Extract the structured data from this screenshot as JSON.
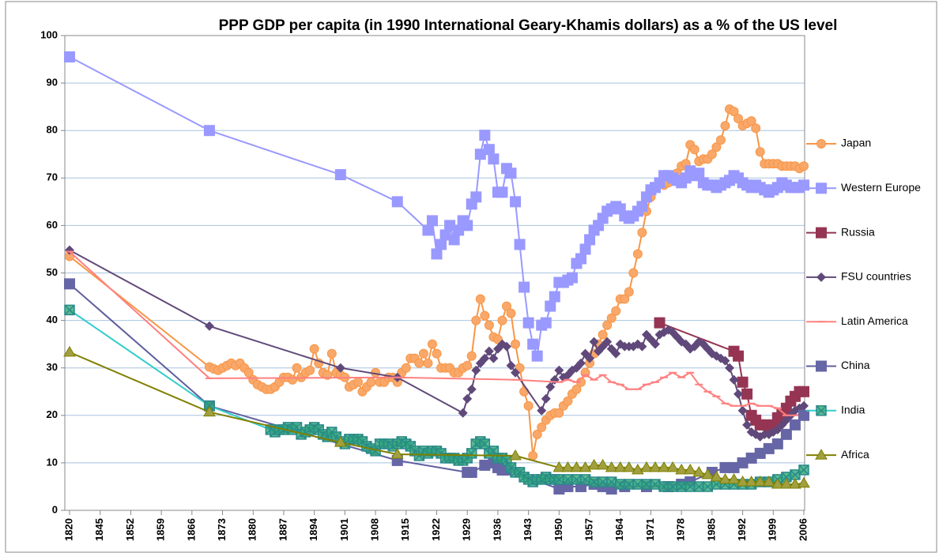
{
  "chart_data": {
    "type": "line",
    "title": "PPP GDP per capita (in 1990 International Geary-Khamis dollars) as a % of the US level",
    "xticks": [
      1820,
      1845,
      1852,
      1859,
      1866,
      1873,
      1880,
      1887,
      1894,
      1901,
      1908,
      1915,
      1922,
      1929,
      1936,
      1943,
      1950,
      1957,
      1964,
      1971,
      1978,
      1985,
      1992,
      1999,
      2006
    ],
    "ylim": [
      0,
      100
    ],
    "yticks": [
      0,
      10,
      20,
      30,
      40,
      50,
      60,
      70,
      80,
      90,
      100
    ],
    "grid": true,
    "legend": "right",
    "series": [
      {
        "name": "Japan",
        "color": "#f79646",
        "marker": "circle",
        "marker_color": "#f9a86a",
        "x": [
          1820,
          1870,
          1871,
          1872,
          1873,
          1874,
          1875,
          1876,
          1877,
          1878,
          1879,
          1880,
          1881,
          1882,
          1883,
          1884,
          1885,
          1886,
          1887,
          1888,
          1889,
          1890,
          1891,
          1892,
          1893,
          1894,
          1895,
          1896,
          1897,
          1898,
          1899,
          1900,
          1901,
          1902,
          1903,
          1904,
          1905,
          1906,
          1907,
          1908,
          1909,
          1910,
          1911,
          1912,
          1913,
          1914,
          1915,
          1916,
          1917,
          1918,
          1919,
          1920,
          1921,
          1922,
          1923,
          1924,
          1925,
          1926,
          1927,
          1928,
          1929,
          1930,
          1931,
          1932,
          1933,
          1934,
          1935,
          1936,
          1937,
          1938,
          1939,
          1940,
          1941,
          1942,
          1943,
          1944,
          1945,
          1946,
          1947,
          1948,
          1949,
          1950,
          1951,
          1952,
          1953,
          1954,
          1955,
          1956,
          1957,
          1958,
          1959,
          1960,
          1961,
          1962,
          1963,
          1964,
          1965,
          1966,
          1967,
          1968,
          1969,
          1970,
          1971,
          1972,
          1973,
          1974,
          1975,
          1976,
          1977,
          1978,
          1979,
          1980,
          1981,
          1982,
          1983,
          1984,
          1985,
          1986,
          1987,
          1988,
          1989,
          1990,
          1991,
          1992,
          1993,
          1994,
          1995,
          1996,
          1997,
          1998,
          1999,
          2000,
          2001,
          2002,
          2003,
          2004,
          2005,
          2006
        ],
        "values": [
          53.5,
          30.2,
          29.8,
          29.5,
          30,
          30.5,
          31,
          30.5,
          31,
          30,
          29,
          27.5,
          26.5,
          26,
          25.5,
          25.5,
          26,
          27,
          28,
          28,
          27.5,
          30,
          28,
          29,
          29.5,
          34,
          31,
          29,
          28.5,
          33,
          29,
          28.5,
          28,
          26,
          26.5,
          27,
          25,
          26,
          27,
          29,
          27,
          27,
          28,
          28,
          27,
          29,
          30,
          32,
          32,
          31,
          33,
          31,
          35,
          33,
          30,
          30,
          30,
          29,
          29,
          30,
          30.5,
          32.5,
          40,
          44.5,
          41,
          39,
          36.5,
          36,
          40,
          43,
          41.5,
          35,
          30,
          25,
          22,
          11.5,
          16,
          17.5,
          19,
          20,
          20.5,
          20.5,
          22,
          23,
          24.5,
          25.5,
          27,
          29,
          31,
          33,
          35,
          37,
          39,
          40.5,
          42,
          44.5,
          44.5,
          46,
          50,
          54,
          58.5,
          63,
          66,
          68,
          69,
          68.5,
          69,
          70,
          71,
          72.5,
          73,
          77,
          76,
          73.5,
          74,
          74,
          75,
          76.5,
          78,
          81,
          84.5,
          84,
          82.5,
          81,
          81.5,
          82,
          80.5,
          75.5,
          73,
          73,
          73,
          73,
          72.5,
          72.5,
          72.5,
          72.5,
          72,
          72.5
        ]
      },
      {
        "name": "Western Europe",
        "color": "#9999ff",
        "marker": "square",
        "marker_color": "#9999ff",
        "x": [
          1820,
          1870,
          1900,
          1913,
          1920,
          1921,
          1922,
          1923,
          1924,
          1925,
          1926,
          1927,
          1928,
          1929,
          1930,
          1931,
          1932,
          1933,
          1934,
          1935,
          1936,
          1937,
          1938,
          1939,
          1940,
          1941,
          1942,
          1943,
          1944,
          1945,
          1946,
          1947,
          1948,
          1949,
          1950,
          1951,
          1952,
          1953,
          1954,
          1955,
          1956,
          1957,
          1958,
          1959,
          1960,
          1961,
          1962,
          1963,
          1964,
          1965,
          1966,
          1967,
          1968,
          1969,
          1970,
          1971,
          1972,
          1973,
          1974,
          1975,
          1976,
          1977,
          1978,
          1979,
          1980,
          1981,
          1982,
          1983,
          1984,
          1985,
          1986,
          1987,
          1988,
          1989,
          1990,
          1991,
          1992,
          1993,
          1994,
          1995,
          1996,
          1997,
          1998,
          1999,
          2000,
          2001,
          2002,
          2003,
          2004,
          2005,
          2006
        ],
        "values": [
          95.5,
          80,
          70.7,
          65,
          59,
          61,
          54,
          56,
          58,
          60,
          57,
          59,
          61,
          60,
          64.5,
          66,
          75,
          79,
          76,
          74,
          67,
          67,
          72,
          71,
          65,
          56,
          47,
          39.5,
          35,
          32.5,
          39,
          39.5,
          43,
          45,
          48,
          48,
          48.5,
          49,
          52,
          53,
          55,
          57,
          59,
          60,
          61.5,
          63,
          63.5,
          64,
          63.5,
          62,
          61.5,
          62,
          63,
          64,
          66,
          67.5,
          68,
          69,
          70.5,
          70.5,
          70,
          69.5,
          69,
          70,
          71.5,
          70.5,
          71,
          69,
          68.5,
          68.5,
          68,
          68.5,
          69,
          69.5,
          70.5,
          70,
          69,
          68.5,
          68,
          68.5,
          68,
          67.5,
          67,
          67.5,
          68,
          69,
          68.5,
          68,
          68,
          68,
          68.5
        ]
      },
      {
        "name": "Russia",
        "color": "#953553",
        "marker": "square",
        "marker_color": "#953553",
        "x": [
          1973,
          1990,
          1991,
          1992,
          1993,
          1994,
          1995,
          1996,
          1997,
          1998,
          1999,
          2000,
          2001,
          2002,
          2003,
          2004,
          2005,
          2006
        ],
        "values": [
          39.5,
          33.5,
          32.5,
          27,
          24.5,
          20,
          19,
          18,
          18,
          17,
          18,
          19.5,
          20.5,
          21.5,
          23,
          24,
          25,
          25
        ]
      },
      {
        "name": "FSU countries",
        "color": "#60497a",
        "marker": "diamond",
        "marker_color": "#60497a",
        "x": [
          1820,
          1870,
          1900,
          1913,
          1928,
          1929,
          1930,
          1931,
          1932,
          1933,
          1934,
          1935,
          1936,
          1937,
          1938,
          1939,
          1940,
          1946,
          1947,
          1948,
          1949,
          1950,
          1951,
          1952,
          1953,
          1954,
          1955,
          1956,
          1957,
          1958,
          1959,
          1960,
          1961,
          1962,
          1963,
          1964,
          1965,
          1966,
          1967,
          1968,
          1969,
          1970,
          1971,
          1972,
          1973,
          1974,
          1975,
          1976,
          1977,
          1978,
          1979,
          1980,
          1981,
          1982,
          1983,
          1984,
          1985,
          1986,
          1987,
          1988,
          1989,
          1990,
          1991,
          1992,
          1993,
          1994,
          1995,
          1996,
          1997,
          1998,
          1999,
          2000,
          2001,
          2002,
          2003,
          2004,
          2005,
          2006
        ],
        "values": [
          54.8,
          38.8,
          30,
          28,
          20.5,
          23.5,
          25.5,
          29.5,
          31,
          32,
          33.5,
          32,
          34,
          35,
          34.5,
          30.5,
          29,
          21,
          23.5,
          26,
          27.5,
          29.5,
          28,
          28.5,
          29.5,
          30,
          31,
          33,
          32,
          35.5,
          33.5,
          34.5,
          35.5,
          34,
          33,
          35,
          34.5,
          34.5,
          34.5,
          35,
          34.5,
          37,
          36,
          35,
          37,
          37.5,
          38,
          37.5,
          36.5,
          35.5,
          35,
          34,
          34.5,
          35.5,
          35,
          34,
          33,
          32.5,
          32,
          31.5,
          30,
          27.5,
          24.5,
          21,
          18,
          16.5,
          16,
          15.5,
          16,
          16,
          16.5,
          17,
          18,
          19,
          20,
          21,
          21.5,
          22
        ]
      },
      {
        "name": "Latin America",
        "color": "#ff8080",
        "marker": "dash",
        "marker_color": "#ff8080",
        "x": [
          1820,
          1870,
          1913,
          1940,
          1950,
          1952,
          1954,
          1956,
          1958,
          1960,
          1962,
          1964,
          1966,
          1968,
          1970,
          1972,
          1974,
          1976,
          1978,
          1980,
          1982,
          1984,
          1986,
          1988,
          1990,
          1992,
          1994,
          1996,
          1998,
          2000,
          2002,
          2004,
          2006
        ],
        "values": [
          54.5,
          27.8,
          28,
          27.5,
          27,
          27.5,
          27,
          28.5,
          27.5,
          28.5,
          27,
          26.5,
          25.5,
          25.5,
          26.5,
          27,
          28,
          29,
          28,
          29,
          26.5,
          25,
          24,
          22.5,
          22,
          22,
          22.5,
          22,
          22,
          21.5,
          20,
          20,
          20.5
        ]
      },
      {
        "name": "China",
        "color": "#5f5f9f",
        "marker": "square",
        "marker_color": "#6666a6",
        "x": [
          1820,
          1870,
          1913,
          1929,
          1930,
          1933,
          1935,
          1936,
          1937,
          1938,
          1950,
          1952,
          1955,
          1958,
          1960,
          1962,
          1965,
          1970,
          1975,
          1978,
          1980,
          1985,
          1988,
          1990,
          1992,
          1994,
          1996,
          1998,
          2000,
          2002,
          2004,
          2006
        ],
        "values": [
          47.7,
          22,
          10.5,
          8,
          8,
          9.5,
          10,
          9,
          8.5,
          8.5,
          4.5,
          5,
          5,
          5.5,
          5,
          4.5,
          5,
          5,
          5,
          5.5,
          6,
          8,
          9,
          9,
          10,
          11,
          12,
          13,
          14,
          16,
          18,
          20
        ]
      },
      {
        "name": "India",
        "color": "#33cccc",
        "marker": "xsquare",
        "marker_color": "#33aa77",
        "x": [
          1820,
          1870,
          1884,
          1885,
          1886,
          1887,
          1888,
          1889,
          1890,
          1891,
          1892,
          1893,
          1894,
          1895,
          1896,
          1897,
          1898,
          1899,
          1900,
          1901,
          1902,
          1903,
          1904,
          1905,
          1906,
          1907,
          1908,
          1909,
          1910,
          1911,
          1912,
          1913,
          1914,
          1915,
          1916,
          1917,
          1918,
          1919,
          1920,
          1921,
          1922,
          1923,
          1924,
          1925,
          1926,
          1927,
          1928,
          1929,
          1930,
          1931,
          1932,
          1933,
          1934,
          1935,
          1936,
          1937,
          1938,
          1939,
          1940,
          1941,
          1942,
          1943,
          1944,
          1945,
          1946,
          1947,
          1948,
          1949,
          1950,
          1952,
          1954,
          1956,
          1958,
          1960,
          1962,
          1964,
          1966,
          1968,
          1970,
          1972,
          1974,
          1976,
          1978,
          1980,
          1982,
          1984,
          1986,
          1988,
          1990,
          1992,
          1994,
          1996,
          1998,
          2000,
          2002,
          2004,
          2006
        ],
        "values": [
          42.2,
          22,
          17,
          16.5,
          17,
          17,
          17.5,
          17,
          17.5,
          16,
          16.5,
          17,
          17.5,
          17,
          16,
          15.5,
          16.5,
          15.5,
          14.5,
          14,
          15,
          15,
          15,
          14.5,
          13.5,
          13,
          12.5,
          14,
          14,
          14,
          13.5,
          14,
          14.5,
          14,
          13.5,
          12.5,
          11.5,
          12.5,
          12,
          12.5,
          12.5,
          12,
          11,
          11,
          11,
          10.5,
          10.5,
          11,
          12,
          14,
          14.5,
          14,
          12,
          12.5,
          11,
          11,
          10.5,
          9,
          8,
          8,
          7,
          6.5,
          6,
          6.5,
          6.5,
          7,
          6.5,
          6.5,
          6.5,
          6.5,
          6.5,
          6.5,
          6,
          6,
          6,
          5.5,
          5.5,
          5.5,
          5.5,
          5.5,
          5,
          5,
          5,
          5,
          5,
          5,
          5.5,
          5.5,
          5.5,
          5.5,
          5.5,
          6,
          6,
          6.5,
          7,
          7.5,
          8.5
        ]
      },
      {
        "name": "Africa",
        "color": "#7f7f00",
        "marker": "triangle",
        "marker_color": "#a0a040",
        "x": [
          1820,
          1870,
          1900,
          1913,
          1940,
          1950,
          1952,
          1954,
          1956,
          1958,
          1960,
          1962,
          1964,
          1966,
          1968,
          1970,
          1972,
          1974,
          1976,
          1978,
          1980,
          1982,
          1984,
          1986,
          1988,
          1990,
          1992,
          1994,
          1996,
          1998,
          2000,
          2002,
          2004,
          2006
        ],
        "values": [
          33.3,
          20.7,
          14.3,
          11.8,
          11.5,
          9,
          9,
          9,
          9,
          9.5,
          9.5,
          9,
          9,
          9,
          8.5,
          9,
          9,
          9,
          9,
          8.5,
          8.5,
          8,
          7.5,
          7,
          6.5,
          6.5,
          6,
          6,
          6,
          6,
          5.5,
          5.5,
          5.5,
          5.7
        ]
      }
    ]
  }
}
